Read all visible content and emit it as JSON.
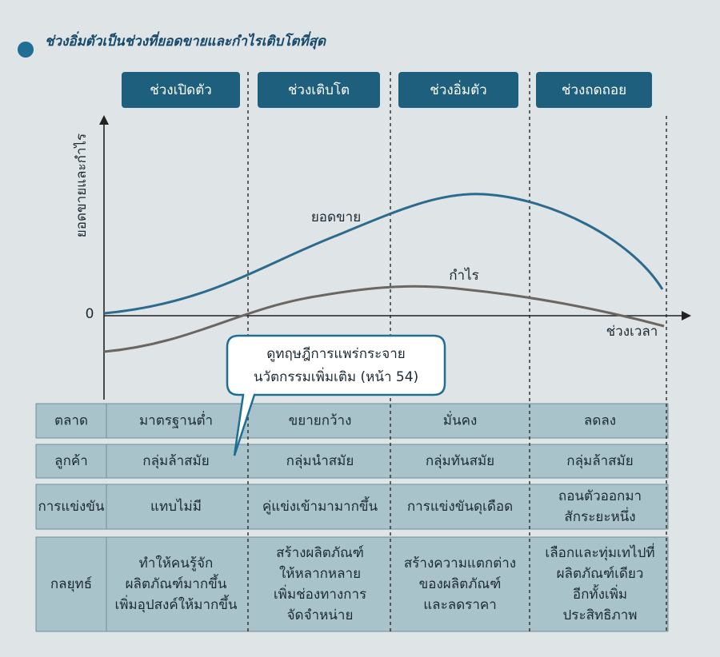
{
  "title": "ช่วงอิ่มตัวเป็นช่วงที่ยอดขายและกำไรเติบโตที่สุด",
  "stages": [
    "ช่วงเปิดตัว",
    "ช่วงเติบโต",
    "ช่วงอิ่มตัว",
    "ช่วงถดถอย"
  ],
  "axis": {
    "y_label": "ยอดขายและกำไร",
    "zero": "0",
    "x_label": "ช่วงเวลา"
  },
  "curves": {
    "sales": "ยอดขาย",
    "profit": "กำไร"
  },
  "callout": [
    "ดูทฤษฎีการแพร่กระจาย",
    "นวัตกรรมเพิ่มเติม (หน้า 54)"
  ],
  "table": {
    "rows": [
      {
        "label": "ตลาด",
        "cells": [
          [
            "มาตรฐานต่ำ"
          ],
          [
            "ขยายกว้าง"
          ],
          [
            "มั่นคง"
          ],
          [
            "ลดลง"
          ]
        ]
      },
      {
        "label": "ลูกค้า",
        "cells": [
          [
            "กลุ่มล้าสมัย"
          ],
          [
            "กลุ่มนำสมัย"
          ],
          [
            "กลุ่มทันสมัย"
          ],
          [
            "กลุ่มล้าสมัย"
          ]
        ]
      },
      {
        "label": "การแข่งขัน",
        "cells": [
          [
            "แทบไม่มี"
          ],
          [
            "คู่แข่งเข้ามามากขึ้น"
          ],
          [
            "การแข่งขันดุเดือด"
          ],
          [
            "ถอนตัวออกมา",
            "สักระยะหนึ่ง"
          ]
        ]
      },
      {
        "label": "กลยุทธ์",
        "cells": [
          [
            "ทำให้คนรู้จัก",
            "ผลิตภัณฑ์มากขึ้น",
            "เพิ่มอุปสงค์ให้มากขึ้น"
          ],
          [
            "สร้างผลิตภัณฑ์",
            "ให้หลากหลาย",
            "เพิ่มช่องทางการ",
            "จัดจำหน่าย"
          ],
          [
            "สร้างความแตกต่าง",
            "ของผลิตภัณฑ์",
            "และลดราคา"
          ],
          [
            "เลือกและทุ่มเทไปที่",
            "ผลิตภัณฑ์เดียว",
            "อีกทั้งเพิ่ม",
            "ประสิทธิภาพ"
          ]
        ]
      }
    ]
  }
}
